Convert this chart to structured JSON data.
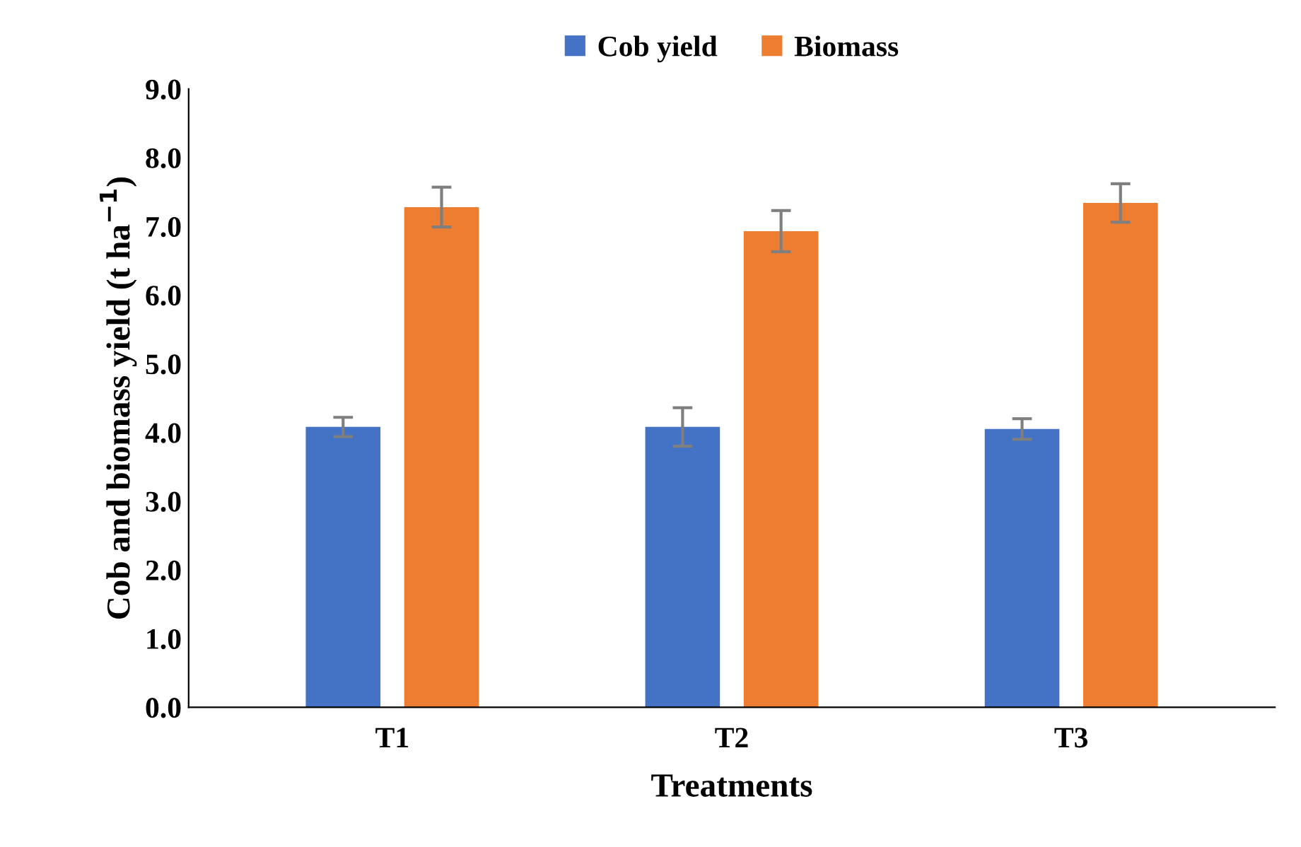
{
  "chart_data": {
    "type": "bar",
    "xlabel": "Treatments",
    "ylabel": "Cob and biomass yield (t ha$^{−1}$)",
    "categories": [
      "T1",
      "T2",
      "T3"
    ],
    "series": [
      {
        "name": "Cob yield",
        "color": "#4472c4",
        "values": [
          4.08,
          4.08,
          4.05
        ],
        "errors": [
          0.14,
          0.28,
          0.15
        ]
      },
      {
        "name": "Biomass",
        "color": "#ed7d31",
        "values": [
          7.28,
          6.93,
          7.34
        ],
        "errors": [
          0.29,
          0.3,
          0.28
        ]
      }
    ],
    "ylim": [
      0,
      9
    ],
    "yticks": [
      {
        "value": 0,
        "label": "0.0"
      },
      {
        "value": 1,
        "label": "1.0"
      },
      {
        "value": 2,
        "label": "2.0"
      },
      {
        "value": 3,
        "label": "3.0"
      },
      {
        "value": 4,
        "label": "4.0"
      },
      {
        "value": 5,
        "label": "5.0"
      },
      {
        "value": 6,
        "label": "6.0"
      },
      {
        "value": 7,
        "label": "7.0"
      },
      {
        "value": 8,
        "label": "8.0"
      },
      {
        "value": 9,
        "label": "9.0"
      }
    ],
    "grid": false,
    "legend": "top"
  }
}
